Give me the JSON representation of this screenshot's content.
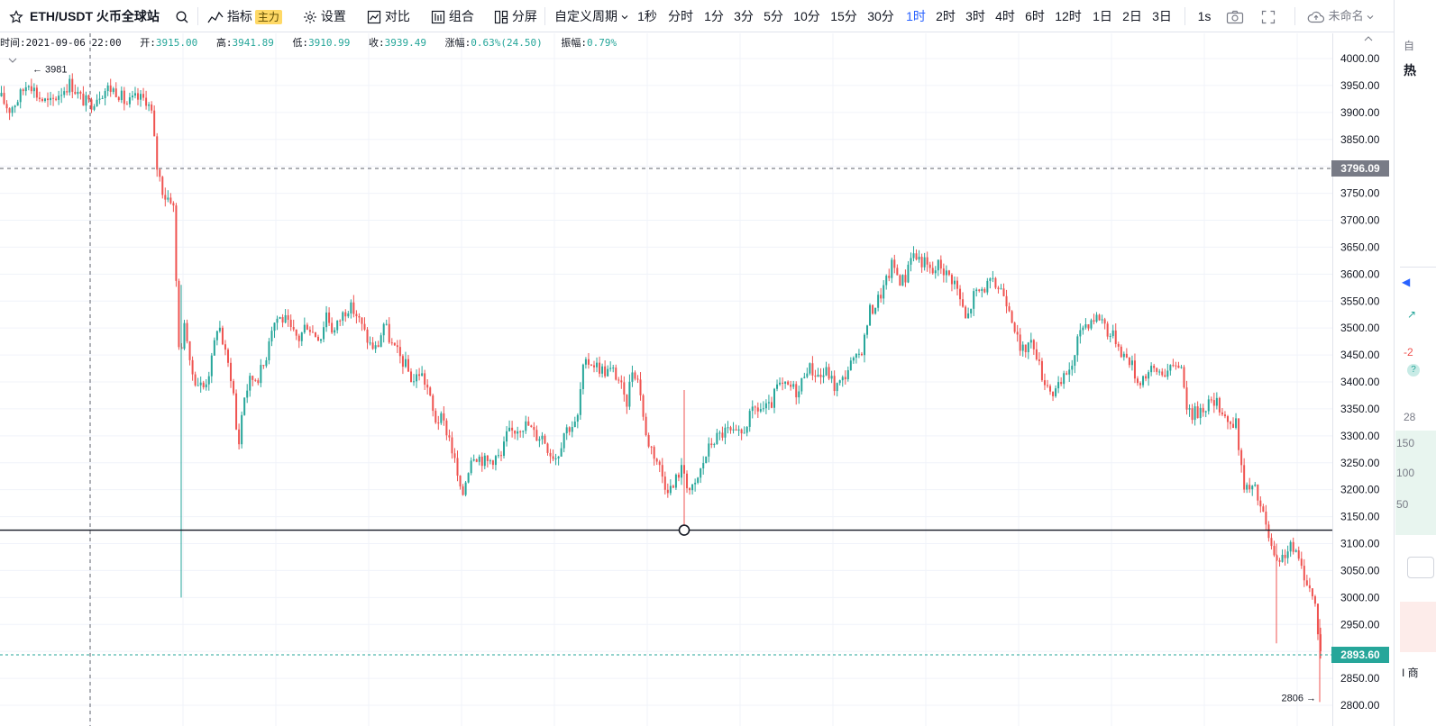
{
  "toolbar": {
    "symbol": "ETH/USDT 火币全球站",
    "indicators": "指标",
    "indicators_badge": "主力",
    "settings": "设置",
    "compare": "对比",
    "combine": "组合",
    "split": "分屏",
    "custom_period": "自定义周期",
    "periods": [
      "1秒",
      "分时",
      "1分",
      "3分",
      "5分",
      "10分",
      "15分",
      "30分",
      "1时",
      "2时",
      "3时",
      "4时",
      "6时",
      "12时",
      "1日",
      "2日",
      "3日"
    ],
    "active_period": "1时",
    "interval_1s": "1s",
    "unnamed": "未命名",
    "colors": {
      "active": "#2962ff",
      "badge": "#ffd966"
    }
  },
  "info": {
    "time_label": "时间:",
    "time": "2021-09-06 22:00",
    "open_label": "开:",
    "open": "3915.00",
    "high_label": "高:",
    "high": "3941.89",
    "low_label": "低:",
    "low": "3910.99",
    "close_label": "收:",
    "close": "3939.49",
    "change_label": "涨幅:",
    "change": "0.63%(24.50)",
    "amplitude_label": "振幅:",
    "amplitude": "0.79%"
  },
  "chart_data": {
    "type": "candlestick",
    "symbol": "ETH/USDT",
    "interval": "1时",
    "ylim": [
      2800,
      4000
    ],
    "yticks": [
      "4000.00",
      "3950.00",
      "3900.00",
      "3850.00",
      "3800.00",
      "3750.00",
      "3700.00",
      "3650.00",
      "3600.00",
      "3550.00",
      "3500.00",
      "3450.00",
      "3400.00",
      "3350.00",
      "3300.00",
      "3250.00",
      "3200.00",
      "3150.00",
      "3100.00",
      "3050.00",
      "3000.00",
      "2950.00",
      "2900.00",
      "2850.00",
      "2800.00"
    ],
    "price_path": [
      [
        0,
        3930
      ],
      [
        10,
        3905
      ],
      [
        20,
        3925
      ],
      [
        32,
        3960
      ],
      [
        42,
        3930
      ],
      [
        55,
        3915
      ],
      [
        65,
        3935
      ],
      [
        78,
        3955
      ],
      [
        90,
        3925
      ],
      [
        100,
        3915
      ],
      [
        110,
        3935
      ],
      [
        120,
        3945
      ],
      [
        130,
        3940
      ],
      [
        140,
        3915
      ],
      [
        150,
        3925
      ],
      [
        162,
        3925
      ],
      [
        168,
        3900
      ],
      [
        174,
        3800
      ],
      [
        182,
        3745
      ],
      [
        192,
        3740
      ],
      [
        196,
        3560
      ],
      [
        200,
        3420
      ],
      [
        205,
        3530
      ],
      [
        210,
        3430
      ],
      [
        218,
        3400
      ],
      [
        226,
        3390
      ],
      [
        234,
        3430
      ],
      [
        242,
        3515
      ],
      [
        250,
        3450
      ],
      [
        258,
        3400
      ],
      [
        264,
        3270
      ],
      [
        270,
        3370
      ],
      [
        278,
        3405
      ],
      [
        286,
        3410
      ],
      [
        294,
        3435
      ],
      [
        300,
        3500
      ],
      [
        308,
        3520
      ],
      [
        316,
        3515
      ],
      [
        324,
        3490
      ],
      [
        332,
        3480
      ],
      [
        340,
        3510
      ],
      [
        348,
        3490
      ],
      [
        356,
        3485
      ],
      [
        362,
        3530
      ],
      [
        370,
        3490
      ],
      [
        378,
        3520
      ],
      [
        386,
        3540
      ],
      [
        394,
        3530
      ],
      [
        402,
        3500
      ],
      [
        410,
        3470
      ],
      [
        418,
        3460
      ],
      [
        426,
        3510
      ],
      [
        434,
        3470
      ],
      [
        442,
        3450
      ],
      [
        450,
        3430
      ],
      [
        458,
        3400
      ],
      [
        466,
        3420
      ],
      [
        474,
        3390
      ],
      [
        482,
        3330
      ],
      [
        490,
        3330
      ],
      [
        498,
        3300
      ],
      [
        506,
        3240
      ],
      [
        512,
        3180
      ],
      [
        518,
        3230
      ],
      [
        524,
        3270
      ],
      [
        532,
        3260
      ],
      [
        540,
        3250
      ],
      [
        548,
        3260
      ],
      [
        556,
        3260
      ],
      [
        562,
        3300
      ],
      [
        570,
        3310
      ],
      [
        578,
        3320
      ],
      [
        586,
        3320
      ],
      [
        594,
        3300
      ],
      [
        602,
        3300
      ],
      [
        610,
        3270
      ],
      [
        618,
        3260
      ],
      [
        626,
        3310
      ],
      [
        634,
        3320
      ],
      [
        640,
        3320
      ],
      [
        646,
        3420
      ],
      [
        654,
        3440
      ],
      [
        662,
        3430
      ],
      [
        670,
        3420
      ],
      [
        680,
        3420
      ],
      [
        688,
        3400
      ],
      [
        694,
        3350
      ],
      [
        702,
        3430
      ],
      [
        710,
        3390
      ],
      [
        716,
        3300
      ],
      [
        722,
        3280
      ],
      [
        730,
        3250
      ],
      [
        738,
        3210
      ],
      [
        746,
        3200
      ],
      [
        752,
        3230
      ],
      [
        758,
        3240
      ],
      [
        764,
        3200
      ],
      [
        770,
        3200
      ],
      [
        776,
        3230
      ],
      [
        782,
        3260
      ],
      [
        790,
        3290
      ],
      [
        798,
        3300
      ],
      [
        806,
        3310
      ],
      [
        814,
        3300
      ],
      [
        822,
        3300
      ],
      [
        830,
        3330
      ],
      [
        838,
        3350
      ],
      [
        846,
        3350
      ],
      [
        854,
        3350
      ],
      [
        862,
        3390
      ],
      [
        870,
        3390
      ],
      [
        878,
        3390
      ],
      [
        886,
        3380
      ],
      [
        894,
        3430
      ],
      [
        902,
        3420
      ],
      [
        910,
        3410
      ],
      [
        918,
        3420
      ],
      [
        926,
        3390
      ],
      [
        934,
        3400
      ],
      [
        942,
        3430
      ],
      [
        950,
        3440
      ],
      [
        958,
        3470
      ],
      [
        964,
        3530
      ],
      [
        970,
        3540
      ],
      [
        976,
        3560
      ],
      [
        982,
        3580
      ],
      [
        990,
        3620
      ],
      [
        998,
        3590
      ],
      [
        1004,
        3590
      ],
      [
        1010,
        3640
      ],
      [
        1018,
        3630
      ],
      [
        1026,
        3620
      ],
      [
        1034,
        3600
      ],
      [
        1042,
        3620
      ],
      [
        1050,
        3600
      ],
      [
        1058,
        3590
      ],
      [
        1064,
        3560
      ],
      [
        1072,
        3510
      ],
      [
        1080,
        3560
      ],
      [
        1088,
        3570
      ],
      [
        1096,
        3580
      ],
      [
        1104,
        3580
      ],
      [
        1112,
        3570
      ],
      [
        1120,
        3540
      ],
      [
        1126,
        3500
      ],
      [
        1132,
        3450
      ],
      [
        1140,
        3470
      ],
      [
        1148,
        3470
      ],
      [
        1154,
        3420
      ],
      [
        1160,
        3400
      ],
      [
        1168,
        3380
      ],
      [
        1176,
        3390
      ],
      [
        1184,
        3420
      ],
      [
        1192,
        3440
      ],
      [
        1198,
        3500
      ],
      [
        1206,
        3510
      ],
      [
        1214,
        3520
      ],
      [
        1222,
        3520
      ],
      [
        1230,
        3490
      ],
      [
        1238,
        3480
      ],
      [
        1246,
        3450
      ],
      [
        1254,
        3440
      ],
      [
        1262,
        3400
      ],
      [
        1268,
        3410
      ],
      [
        1276,
        3420
      ],
      [
        1284,
        3420
      ],
      [
        1292,
        3420
      ],
      [
        1300,
        3420
      ],
      [
        1306,
        3440
      ],
      [
        1312,
        3420
      ],
      [
        1318,
        3340
      ],
      [
        1324,
        3340
      ],
      [
        1332,
        3350
      ],
      [
        1340,
        3360
      ],
      [
        1348,
        3360
      ],
      [
        1356,
        3350
      ],
      [
        1364,
        3320
      ],
      [
        1372,
        3320
      ],
      [
        1378,
        3220
      ],
      [
        1384,
        3200
      ],
      [
        1392,
        3200
      ],
      [
        1400,
        3160
      ],
      [
        1406,
        3120
      ],
      [
        1412,
        3080
      ],
      [
        1418,
        3050
      ],
      [
        1424,
        3080
      ],
      [
        1430,
        3090
      ],
      [
        1436,
        3090
      ],
      [
        1442,
        3060
      ],
      [
        1448,
        3040
      ],
      [
        1454,
        3010
      ],
      [
        1460,
        2980
      ],
      [
        1464,
        2900
      ],
      [
        1468,
        2894
      ]
    ],
    "spikes": [
      {
        "pos": 201,
        "high": 3580,
        "low": 3000
      },
      {
        "pos": 759,
        "high": 3385,
        "low": 3120
      },
      {
        "pos": 1416,
        "high": 3100,
        "low": 2915
      },
      {
        "pos": 1464,
        "high": 2960,
        "low": 2806
      }
    ],
    "high_marker": {
      "label": "3981",
      "price": 3981,
      "pos": 32
    },
    "low_marker": {
      "label": "2806",
      "price": 2806,
      "pos": 1464
    },
    "crosshair": {
      "pos": 100,
      "price": 3796.09
    },
    "crosshair_label": "3796.09",
    "last_price": 2893.6,
    "last_price_label": "2893.60",
    "horizontal_line": {
      "price": 3125,
      "anchor_pos": 759
    },
    "colors": {
      "up": "#26a69a",
      "down": "#ef5350",
      "grid": "#f0f3fa",
      "last_price_tag": "#26a69a",
      "crosshair_tag": "#787b86"
    }
  },
  "right_panel": {
    "top_char": "自",
    "heading": "热",
    "items": [
      "-2",
      "150",
      "100",
      "50",
      "28"
    ],
    "line_prefix": "I 商"
  }
}
